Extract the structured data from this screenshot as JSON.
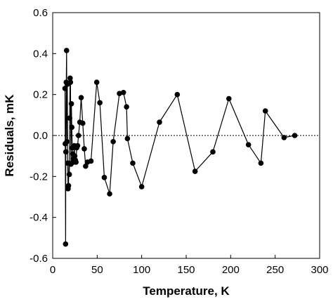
{
  "chart_data": {
    "type": "scatter",
    "title": "",
    "xlabel": "Temperature, K",
    "ylabel": "Residuals, mK",
    "xlim": [
      0,
      300
    ],
    "ylim": [
      -0.6,
      0.6
    ],
    "x_ticks": [
      0,
      50,
      100,
      150,
      200,
      250,
      300
    ],
    "y_ticks": [
      -0.6,
      -0.4,
      -0.2,
      0.0,
      0.2,
      0.4,
      0.6
    ],
    "x_tick_labels": [
      "0",
      "50",
      "100",
      "150",
      "200",
      "250",
      "300"
    ],
    "y_tick_labels": [
      "-0.6",
      "-0.4",
      "-0.2",
      "0.0",
      "0.2",
      "0.4",
      "0.6"
    ],
    "grid": false,
    "zero_line": "dotted",
    "connected": true,
    "marker_color": "#000000",
    "line_color": "#000000",
    "series": [
      {
        "x": [
          13.8,
          14.1,
          14.5,
          14.8,
          15.2,
          15.6,
          16.0,
          16.4,
          16.8,
          17.3,
          17.8,
          18.2,
          18.7,
          19.1,
          19.6,
          20.0,
          20.5,
          21.0,
          21.5,
          22.0,
          22.5,
          23.0,
          23.6,
          24.2,
          24.8,
          25.5,
          26.2,
          27.0,
          28.0,
          29.0,
          30.5,
          32.0,
          33.8,
          35.5,
          37.0,
          39.0,
          43.0,
          49.5,
          53.0,
          58.0,
          64.0,
          68.0,
          75.0,
          79.5,
          83.0,
          84.0,
          90.0,
          100.0,
          120.0,
          140.0,
          160.0,
          180.0,
          198.0,
          220.0,
          234.0,
          239.0,
          260.0,
          272.0
        ],
        "y": [
          0.23,
          -0.04,
          -0.53,
          -0.08,
          0.26,
          0.415,
          -0.03,
          0.25,
          -0.135,
          -0.26,
          -0.245,
          -0.135,
          -0.19,
          0.085,
          0.28,
          0.26,
          -0.14,
          0.155,
          0.04,
          -0.06,
          -0.09,
          -0.115,
          -0.13,
          -0.05,
          -0.1,
          -0.12,
          -0.13,
          -0.06,
          -0.05,
          0.0,
          0.065,
          0.185,
          0.06,
          -0.065,
          -0.15,
          -0.13,
          -0.125,
          0.26,
          0.16,
          -0.205,
          -0.285,
          -0.03,
          0.205,
          0.21,
          0.14,
          -0.015,
          -0.135,
          -0.25,
          0.065,
          0.2,
          -0.175,
          -0.08,
          0.18,
          -0.045,
          -0.135,
          0.12,
          -0.01,
          0.0
        ]
      }
    ]
  }
}
